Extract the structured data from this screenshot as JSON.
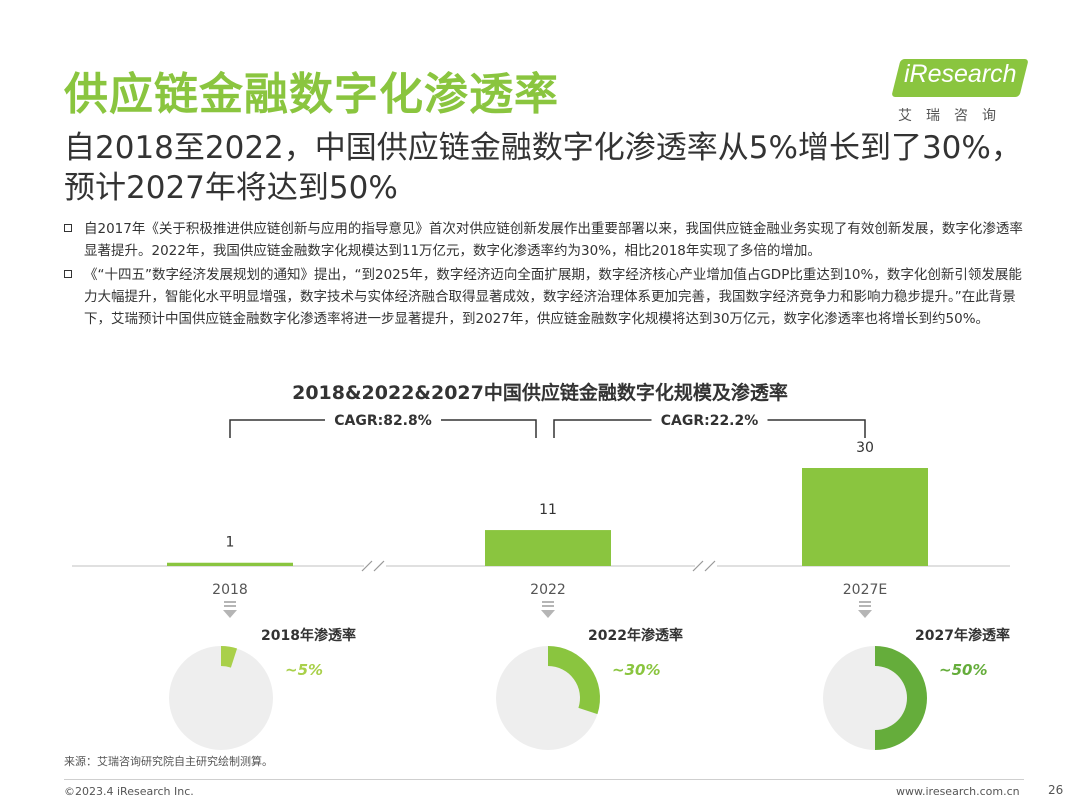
{
  "header": {
    "title": "供应链金融数字化渗透率",
    "subtitle": "自2018至2022，中国供应链金融数字化渗透率从5%增长到了30%，预计2027年将达到50%"
  },
  "logo": {
    "brand": "iResearch",
    "sub": "艾瑞咨询"
  },
  "bullets": [
    "自2017年《关于积极推进供应链创新与应用的指导意见》首次对供应链创新发展作出重要部署以来，我国供应链金融业务实现了有效创新发展，数字化渗透率显著提升。2022年，我国供应链金融数字化规模达到11万亿元，数字化渗透率约为30%，相比2018年实现了多倍的增加。",
    "《“十四五”数字经济发展规划的通知》提出，“到2025年，数字经济迈向全面扩展期，数字经济核心产业增加值占GDP比重达到10%，数字化创新引领发展能力大幅提升，智能化水平明显增强，数字技术与实体经济融合取得显著成效，数字经济治理体系更加完善，我国数字经济竞争力和影响力稳步提升。”在此背景下，艾瑞预计中国供应链金融数字化渗透率将进一步显著提升，到2027年，供应链金融数字化规模将达到30万亿元，数字化渗透率也将增长到约50%。"
  ],
  "chart_data": {
    "type": "bar",
    "title": "2018&2022&2027中国供应链金融数字化规模及渗透率",
    "categories": [
      "2018",
      "2022",
      "2027E"
    ],
    "values": [
      1,
      11,
      30
    ],
    "value_labels": [
      "1",
      "11",
      "30"
    ],
    "cagr": [
      "CAGR:82.8%",
      "CAGR:22.2%"
    ],
    "penetration": [
      {
        "label": "2018年渗透率",
        "value": 0.05,
        "value_label": "~5%"
      },
      {
        "label": "2022年渗透率",
        "value": 0.3,
        "value_label": "~30%"
      },
      {
        "label": "2027年渗透率",
        "value": 0.5,
        "value_label": "~50%"
      }
    ],
    "colors": {
      "bar": "#8ac53f",
      "donut": [
        "#a9d04a",
        "#8ac53f",
        "#65ad3b"
      ],
      "track": "#eeeeee",
      "axis": "#d6d6d6",
      "text": "#333333"
    }
  },
  "footer": {
    "source": "来源：艾瑞咨询研究院自主研究绘制测算。",
    "copyright": "©2023.4 iResearch Inc.",
    "website": "www.iresearch.com.cn",
    "page": "26"
  }
}
